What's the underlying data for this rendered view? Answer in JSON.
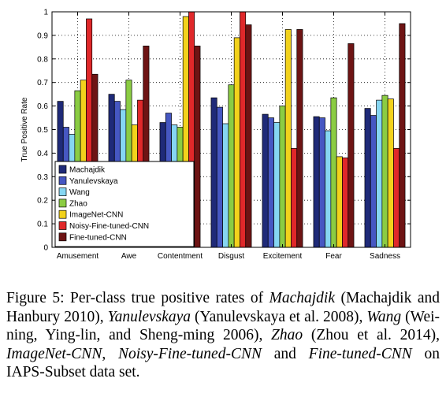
{
  "chart_data": {
    "type": "bar",
    "ylabel": "True Positive Rate",
    "xlabel": "",
    "title": "",
    "ylim": [
      0,
      1
    ],
    "yticks": [
      "0",
      "0.1",
      "0.2",
      "0.3",
      "0.4",
      "0.5",
      "0.6",
      "0.7",
      "0.8",
      "0.9",
      "1"
    ],
    "grid": true,
    "legend_position": "bottom-left",
    "categories": [
      "Amusement",
      "Awe",
      "Contentment",
      "Disgust",
      "Excitement",
      "Fear",
      "Sadness"
    ],
    "series": [
      {
        "name": "Machajdik",
        "color": "#1f2a78",
        "values": [
          0.62,
          0.65,
          0.53,
          0.635,
          0.565,
          0.555,
          0.59
        ]
      },
      {
        "name": "Yanulevskaya",
        "color": "#4657c2",
        "values": [
          0.51,
          0.62,
          0.57,
          0.595,
          0.55,
          0.55,
          0.56
        ]
      },
      {
        "name": "Wang",
        "color": "#86d6f2",
        "values": [
          0.48,
          0.585,
          0.52,
          0.525,
          0.53,
          0.495,
          0.625
        ]
      },
      {
        "name": "Zhao",
        "color": "#8bcc43",
        "values": [
          0.665,
          0.71,
          0.51,
          0.69,
          0.6,
          0.635,
          0.645
        ]
      },
      {
        "name": "ImageNet-CNN",
        "color": "#f2d21c",
        "values": [
          0.71,
          0.52,
          0.98,
          0.89,
          0.925,
          0.385,
          0.63
        ]
      },
      {
        "name": "Noisy-Fine-tuned-CNN",
        "color": "#e0282a",
        "values": [
          0.97,
          0.625,
          1.0,
          1.0,
          0.42,
          0.38,
          0.42
        ]
      },
      {
        "name": "Fine-tuned-CNN",
        "color": "#6e1414",
        "values": [
          0.735,
          0.855,
          0.855,
          0.945,
          0.925,
          0.865,
          0.95
        ]
      }
    ]
  },
  "caption": {
    "prefix": "Figure 5: Per-class true positive rates of ",
    "segments": [
      {
        "text": "Machajdik",
        "italic": true
      },
      {
        "text": " (Machajdik and Hanbury 2010), ",
        "italic": false
      },
      {
        "text": "Yanulevskaya",
        "italic": true
      },
      {
        "text": " (Yanulevskaya et al. 2008), ",
        "italic": false
      },
      {
        "text": "Wang",
        "italic": true
      },
      {
        "text": " (Wei-ning, Ying-lin, and Sheng-ming 2006), ",
        "italic": false
      },
      {
        "text": "Zhao",
        "italic": true
      },
      {
        "text": " (Zhou et al. 2014), ",
        "italic": false
      },
      {
        "text": "ImageNet-CNN",
        "italic": true
      },
      {
        "text": ", ",
        "italic": false
      },
      {
        "text": "Noisy-Fine-tuned-CNN",
        "italic": true
      },
      {
        "text": " and ",
        "italic": false
      },
      {
        "text": "Fine-tuned-CNN",
        "italic": true
      },
      {
        "text": " on IAPS-Subset data set.",
        "italic": false
      }
    ]
  }
}
